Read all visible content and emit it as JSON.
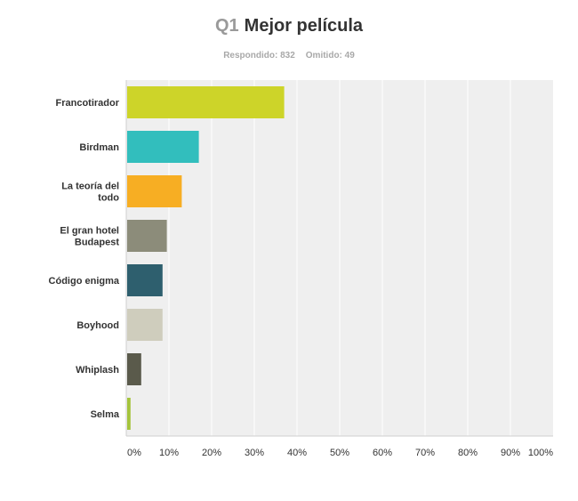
{
  "header": {
    "question_number": "Q1",
    "question_title": "Mejor película",
    "answered_text": "Respondido: 832",
    "skipped_text": "Omitido: 49"
  },
  "chart_data": {
    "type": "bar",
    "orientation": "horizontal",
    "categories": [
      [
        "Francotirador"
      ],
      [
        "Birdman"
      ],
      [
        "La teoría del",
        "todo"
      ],
      [
        "El gran hotel",
        "Budapest"
      ],
      [
        "Código enigma"
      ],
      [
        "Boyhood"
      ],
      [
        "Whiplash"
      ],
      [
        "Selma"
      ]
    ],
    "values": [
      37,
      17,
      13,
      9.5,
      8.5,
      8.5,
      3.5,
      1
    ],
    "colors": [
      "#cdd429",
      "#32bebd",
      "#f7ae23",
      "#8c8c7a",
      "#2e5f6e",
      "#cfcdbd",
      "#5a5a4b",
      "#a4c43b"
    ],
    "xlim": [
      0,
      100
    ],
    "tick_labels": [
      "0%",
      "10%",
      "20%",
      "30%",
      "40%",
      "50%",
      "60%",
      "70%",
      "80%",
      "90%",
      "100%"
    ],
    "grid": true,
    "plot_background": "#efefef"
  }
}
